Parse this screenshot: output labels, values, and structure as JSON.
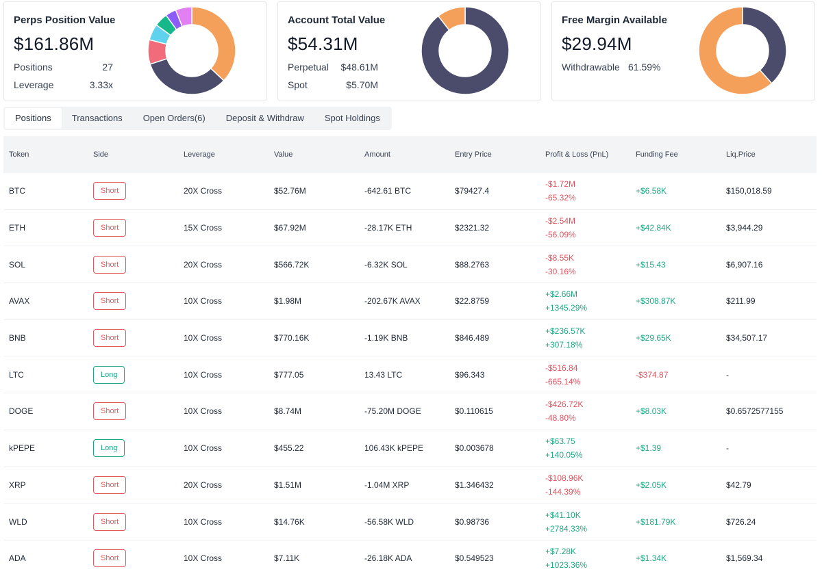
{
  "colors": {
    "orange": "#f5a05a",
    "navy": "#4b4c6b",
    "coral": "#f26b7a",
    "cyan": "#5fd3ee",
    "green": "#16b889",
    "purple": "#8b5cf6",
    "magenta": "#e27ff2",
    "negative": "#e0525d",
    "positive": "#20a784"
  },
  "cards": {
    "perps": {
      "title": "Perps Position Value",
      "value": "$161.86M",
      "positions_label": "Positions",
      "positions_value": "27",
      "leverage_label": "Leverage",
      "leverage_value": "3.33x",
      "donut": [
        {
          "share": 0.37,
          "color": "#f5a05a"
        },
        {
          "share": 0.33,
          "color": "#4b4c6b"
        },
        {
          "share": 0.09,
          "color": "#f26b7a"
        },
        {
          "share": 0.06,
          "color": "#5fd3ee"
        },
        {
          "share": 0.05,
          "color": "#16b889"
        },
        {
          "share": 0.04,
          "color": "#8b5cf6"
        },
        {
          "share": 0.06,
          "color": "#e27ff2"
        }
      ]
    },
    "account": {
      "title": "Account Total Value",
      "value": "$54.31M",
      "perpetual_label": "Perpetual",
      "perpetual_value": "$48.61M",
      "spot_label": "Spot",
      "spot_value": "$5.70M",
      "donut": [
        {
          "share": 0.895,
          "color": "#4b4c6b"
        },
        {
          "share": 0.105,
          "color": "#f5a05a"
        }
      ]
    },
    "margin": {
      "title": "Free Margin Available",
      "value": "$29.94M",
      "withdrawable_label": "Withdrawable",
      "withdrawable_value": "61.59%",
      "donut": [
        {
          "share": 0.3841,
          "color": "#4b4c6b"
        },
        {
          "share": 0.6159,
          "color": "#f5a05a"
        }
      ]
    }
  },
  "tabs": [
    "Positions",
    "Transactions",
    "Open Orders(6)",
    "Deposit & Withdraw",
    "Spot Holdings"
  ],
  "table": {
    "headers": [
      "Token",
      "Side",
      "Leverage",
      "Value",
      "Amount",
      "Entry Price",
      "Profit & Loss (PnL)",
      "Funding Fee",
      "Liq.Price"
    ],
    "rows": [
      {
        "token": "BTC",
        "side": "Short",
        "leverage": "20X Cross",
        "value": "$52.76M",
        "amount": "-642.61 BTC",
        "entry": "$79427.4",
        "pnl": "-$1.72M",
        "pnl_pct": "-65.32%",
        "pnl_dir": "neg",
        "funding": "+$6.58K",
        "funding_dir": "pos",
        "liq": "$150,018.59"
      },
      {
        "token": "ETH",
        "side": "Short",
        "leverage": "15X Cross",
        "value": "$67.92M",
        "amount": "-28.17K ETH",
        "entry": "$2321.32",
        "pnl": "-$2.54M",
        "pnl_pct": "-56.09%",
        "pnl_dir": "neg",
        "funding": "+$42.84K",
        "funding_dir": "pos",
        "liq": "$3,944.29"
      },
      {
        "token": "SOL",
        "side": "Short",
        "leverage": "20X Cross",
        "value": "$566.72K",
        "amount": "-6.32K SOL",
        "entry": "$88.2763",
        "pnl": "-$8.55K",
        "pnl_pct": "-30.16%",
        "pnl_dir": "neg",
        "funding": "+$15.43",
        "funding_dir": "pos",
        "liq": "$6,907.16"
      },
      {
        "token": "AVAX",
        "side": "Short",
        "leverage": "10X Cross",
        "value": "$1.98M",
        "amount": "-202.67K AVAX",
        "entry": "$22.8759",
        "pnl": "+$2.66M",
        "pnl_pct": "+1345.29%",
        "pnl_dir": "pos",
        "funding": "+$308.87K",
        "funding_dir": "pos",
        "liq": "$211.99"
      },
      {
        "token": "BNB",
        "side": "Short",
        "leverage": "10X Cross",
        "value": "$770.16K",
        "amount": "-1.19K BNB",
        "entry": "$846.489",
        "pnl": "+$236.57K",
        "pnl_pct": "+307.18%",
        "pnl_dir": "pos",
        "funding": "+$29.65K",
        "funding_dir": "pos",
        "liq": "$34,507.17"
      },
      {
        "token": "LTC",
        "side": "Long",
        "leverage": "10X Cross",
        "value": "$777.05",
        "amount": "13.43 LTC",
        "entry": "$96.343",
        "pnl": "-$516.84",
        "pnl_pct": "-665.14%",
        "pnl_dir": "neg",
        "funding": "-$374.87",
        "funding_dir": "neg",
        "liq": "-"
      },
      {
        "token": "DOGE",
        "side": "Short",
        "leverage": "10X Cross",
        "value": "$8.74M",
        "amount": "-75.20M DOGE",
        "entry": "$0.110615",
        "pnl": "-$426.72K",
        "pnl_pct": "-48.80%",
        "pnl_dir": "neg",
        "funding": "+$8.03K",
        "funding_dir": "pos",
        "liq": "$0.6572577155"
      },
      {
        "token": "kPEPE",
        "side": "Long",
        "leverage": "10X Cross",
        "value": "$455.22",
        "amount": "106.43K kPEPE",
        "entry": "$0.003678",
        "pnl": "+$63.75",
        "pnl_pct": "+140.05%",
        "pnl_dir": "pos",
        "funding": "+$1.39",
        "funding_dir": "pos",
        "liq": "-"
      },
      {
        "token": "XRP",
        "side": "Short",
        "leverage": "20X Cross",
        "value": "$1.51M",
        "amount": "-1.04M XRP",
        "entry": "$1.346432",
        "pnl": "-$108.96K",
        "pnl_pct": "-144.39%",
        "pnl_dir": "neg",
        "funding": "+$2.05K",
        "funding_dir": "pos",
        "liq": "$42.79"
      },
      {
        "token": "WLD",
        "side": "Short",
        "leverage": "10X Cross",
        "value": "$14.76K",
        "amount": "-56.58K WLD",
        "entry": "$0.98736",
        "pnl": "+$41.10K",
        "pnl_pct": "+2784.33%",
        "pnl_dir": "pos",
        "funding": "+$181.79K",
        "funding_dir": "pos",
        "liq": "$726.24"
      },
      {
        "token": "ADA",
        "side": "Short",
        "leverage": "10X Cross",
        "value": "$7.11K",
        "amount": "-26.18K ADA",
        "entry": "$0.549523",
        "pnl": "+$7.28K",
        "pnl_pct": "+1023.36%",
        "pnl_dir": "pos",
        "funding": "+$1.34K",
        "funding_dir": "pos",
        "liq": "$1,569.34"
      }
    ]
  }
}
